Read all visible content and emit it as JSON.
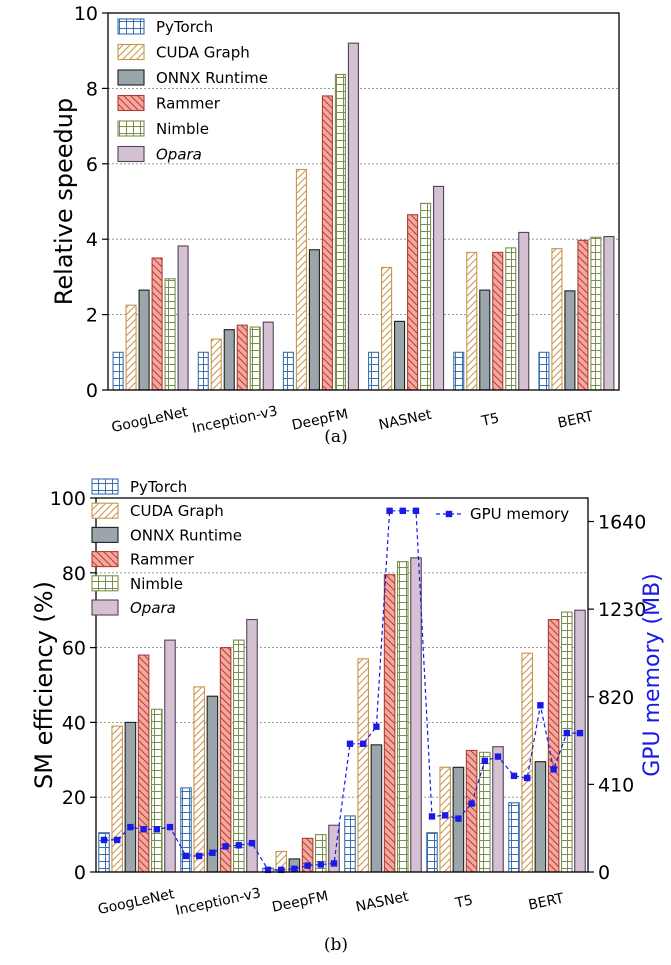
{
  "chart_data": [
    {
      "type": "bar",
      "caption": "(a)",
      "ylabel": "Relative speedup",
      "ylim": [
        0,
        10
      ],
      "yticks": [
        0,
        2,
        4,
        6,
        8,
        10
      ],
      "grid": "horizontal dotted",
      "legend_placement": "top-left",
      "categories": [
        "GoogLeNet",
        "Inception-v3",
        "DeepFM",
        "NASNet",
        "T5",
        "BERT"
      ],
      "series": [
        {
          "name": "PyTorch",
          "values": [
            1.0,
            1.0,
            1.0,
            1.0,
            1.0,
            1.0
          ]
        },
        {
          "name": "CUDA Graph",
          "values": [
            2.25,
            1.35,
            5.85,
            3.25,
            3.65,
            3.75
          ]
        },
        {
          "name": "ONNX Runtime",
          "values": [
            2.65,
            1.6,
            3.72,
            1.82,
            2.65,
            2.63
          ]
        },
        {
          "name": "Rammer",
          "values": [
            3.5,
            1.72,
            7.8,
            4.65,
            3.65,
            3.97
          ]
        },
        {
          "name": "Nimble",
          "values": [
            2.95,
            1.67,
            8.37,
            4.95,
            3.77,
            4.05
          ]
        },
        {
          "name": "Opara",
          "values": [
            3.82,
            1.8,
            9.2,
            5.4,
            4.18,
            4.07
          ]
        }
      ]
    },
    {
      "type": "bar",
      "caption": "(b)",
      "ylabel": "SM efficiency (%)",
      "ylim": [
        0,
        100
      ],
      "yticks": [
        0,
        20,
        40,
        60,
        80,
        100
      ],
      "y2label": "GPU memory (MB)",
      "y2lim": [
        0,
        1750
      ],
      "y2ticks": [
        0,
        410,
        820,
        1230,
        1640
      ],
      "grid": "horizontal dotted",
      "legend_placement": "top-left",
      "categories": [
        "GoogLeNet",
        "Inception-v3",
        "DeepFM",
        "NASNet",
        "T5",
        "BERT"
      ],
      "series": [
        {
          "name": "PyTorch",
          "values": [
            10.5,
            22.5,
            1.0,
            15.0,
            10.5,
            18.5
          ]
        },
        {
          "name": "CUDA Graph",
          "values": [
            39.0,
            49.5,
            5.5,
            57.0,
            28.0,
            58.5
          ]
        },
        {
          "name": "ONNX Runtime",
          "values": [
            40.0,
            47.0,
            3.5,
            34.0,
            28.0,
            29.5
          ]
        },
        {
          "name": "Rammer",
          "values": [
            58.0,
            60.0,
            9.0,
            79.5,
            32.5,
            67.5
          ]
        },
        {
          "name": "Nimble",
          "values": [
            43.5,
            62.0,
            10.0,
            83.0,
            32.0,
            69.5
          ]
        },
        {
          "name": "Opara",
          "values": [
            62.0,
            67.5,
            12.5,
            84.0,
            33.5,
            70.0
          ]
        }
      ],
      "line_series": {
        "name": "GPU memory",
        "axis": "right",
        "values": [
          [
            150,
            150,
            210,
            200,
            200,
            210
          ],
          [
            75,
            75,
            90,
            120,
            125,
            135
          ],
          [
            10,
            10,
            15,
            30,
            35,
            40
          ],
          [
            600,
            600,
            680,
            1690,
            1690,
            1690
          ],
          [
            260,
            265,
            250,
            320,
            520,
            540
          ],
          [
            450,
            440,
            780,
            480,
            650,
            650
          ]
        ]
      }
    }
  ],
  "colors": {
    "series_fill": [
      "#ffffff",
      "#ffffff",
      "#9aa6aa",
      "#f2a9a0",
      "#ffffff",
      "#d4c2d2"
    ],
    "series_edge": [
      "#3a70b0",
      "#c7964a",
      "#1d1f20",
      "#ab3f36",
      "#79904c",
      "#55405e"
    ],
    "series_hatch": [
      "#3a70b0",
      "#c7964a",
      "#8a9699",
      "#c13a2f",
      "#79904c",
      "#d4c2d2"
    ],
    "memory_line": "#1a1ae6",
    "right_axis_label": "#1a1ae6"
  }
}
